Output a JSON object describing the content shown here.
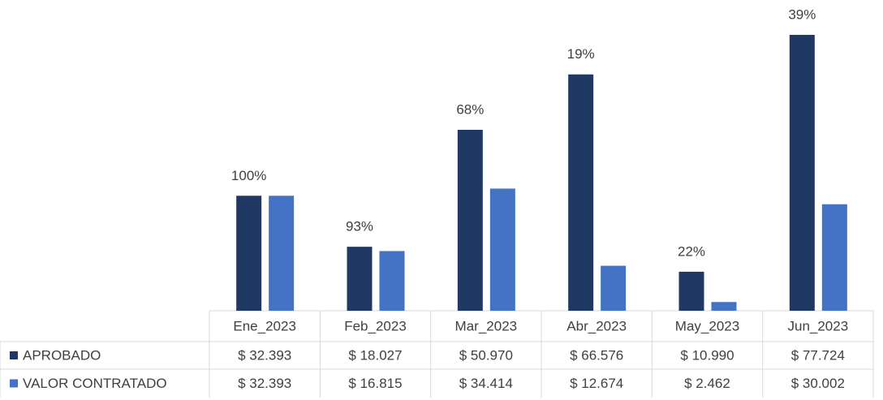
{
  "chart_data": {
    "type": "bar",
    "categories": [
      "Ene_2023",
      "Feb_2023",
      "Mar_2023",
      "Abr_2023",
      "May_2023",
      "Jun_2023"
    ],
    "series": [
      {
        "name": "APROBADO",
        "color": "#1f3864",
        "values": [
          32393,
          18027,
          50970,
          66576,
          10990,
          77724
        ],
        "value_labels": [
          "$ 32.393",
          "$ 18.027",
          "$ 50.970",
          "$ 66.576",
          "$ 10.990",
          "$ 77.724"
        ]
      },
      {
        "name": "VALOR CONTRATADO",
        "color": "#4472c4",
        "values": [
          32393,
          16815,
          34414,
          12674,
          2462,
          30002
        ],
        "value_labels": [
          "$ 32.393",
          "$ 16.815",
          "$ 34.414",
          "$ 12.674",
          "$ 2.462",
          "$ 30.002"
        ]
      }
    ],
    "ratio_labels": {
      "values": [
        100,
        93,
        68,
        19,
        22,
        39
      ],
      "labels": [
        "100%",
        "93%",
        "68%",
        "19%",
        "22%",
        "39%"
      ]
    },
    "ylim": [
      0,
      80000
    ]
  }
}
